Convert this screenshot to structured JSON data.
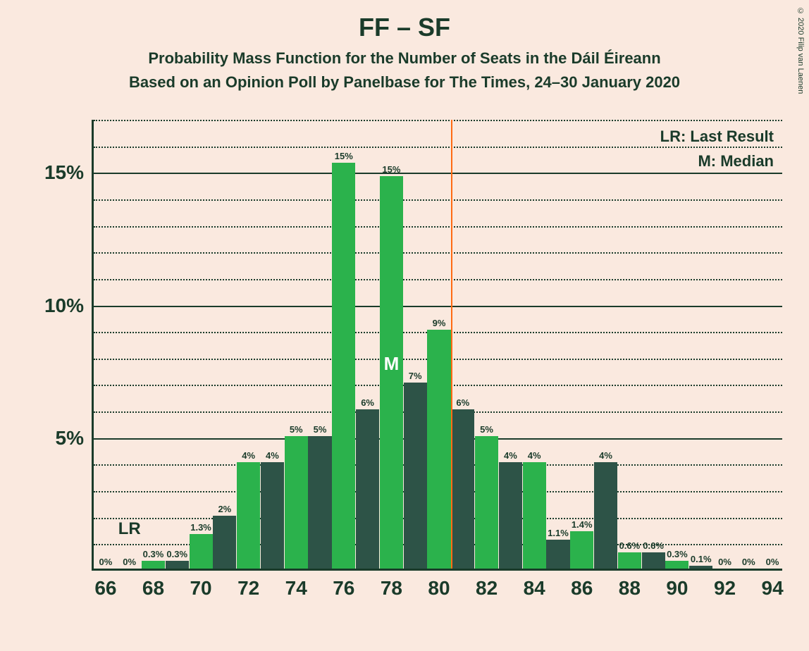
{
  "copyright": "© 2020 Filip van Laenen",
  "title": "FF – SF",
  "subtitle1": "Probability Mass Function for the Number of Seats in the Dáil Éireann",
  "subtitle2": "Based on an Opinion Poll by Panelbase for The Times, 24–30 January 2020",
  "legend": {
    "lr": "LR: Last Result",
    "m": "M: Median"
  },
  "lr_text": "LR",
  "m_text": "M",
  "chart": {
    "background_color": "#fae9df",
    "axis_color": "#1a3b2a",
    "text_color": "#1a3b2a",
    "majority_line_color": "#ff6a13",
    "bar_color_light": "#2bb24c",
    "bar_color_dark": "#2d5347",
    "x_start": 66,
    "x_end": 94,
    "x_tick_step": 2,
    "y_max": 17,
    "y_ticks": [
      5,
      10,
      15
    ],
    "minor_grid_step": 1,
    "majority_x": 80.5,
    "lr_x": 67,
    "m_x": 78,
    "m_y": 7.3,
    "bars": [
      {
        "x": 66,
        "v": 0,
        "lbl": "0%",
        "c": "light"
      },
      {
        "x": 67,
        "v": 0,
        "lbl": "0%",
        "c": "dark"
      },
      {
        "x": 68,
        "v": 0.3,
        "lbl": "0.3%",
        "c": "light"
      },
      {
        "x": 69,
        "v": 0.3,
        "lbl": "0.3%",
        "c": "dark"
      },
      {
        "x": 70,
        "v": 1.3,
        "lbl": "1.3%",
        "c": "light"
      },
      {
        "x": 71,
        "v": 2,
        "lbl": "2%",
        "c": "dark"
      },
      {
        "x": 72,
        "v": 4,
        "lbl": "4%",
        "c": "light"
      },
      {
        "x": 73,
        "v": 4,
        "lbl": "4%",
        "c": "dark"
      },
      {
        "x": 74,
        "v": 5,
        "lbl": "5%",
        "c": "light"
      },
      {
        "x": 75,
        "v": 5,
        "lbl": "5%",
        "c": "dark"
      },
      {
        "x": 76,
        "v": 15.3,
        "lbl": "15%",
        "c": "light"
      },
      {
        "x": 77,
        "v": 6,
        "lbl": "6%",
        "c": "dark"
      },
      {
        "x": 78,
        "v": 14.8,
        "lbl": "15%",
        "c": "light"
      },
      {
        "x": 79,
        "v": 7,
        "lbl": "7%",
        "c": "dark"
      },
      {
        "x": 80,
        "v": 9,
        "lbl": "9%",
        "c": "light"
      },
      {
        "x": 81,
        "v": 6,
        "lbl": "6%",
        "c": "dark"
      },
      {
        "x": 82,
        "v": 5,
        "lbl": "5%",
        "c": "light"
      },
      {
        "x": 83,
        "v": 4,
        "lbl": "4%",
        "c": "dark"
      },
      {
        "x": 84,
        "v": 4,
        "lbl": "4%",
        "c": "light"
      },
      {
        "x": 85,
        "v": 1.1,
        "lbl": "1.1%",
        "c": "dark"
      },
      {
        "x": 86,
        "v": 1.4,
        "lbl": "1.4%",
        "c": "light"
      },
      {
        "x": 87,
        "v": 4,
        "lbl": "4%",
        "c": "dark"
      },
      {
        "x": 88,
        "v": 0.6,
        "lbl": "0.6%",
        "c": "light"
      },
      {
        "x": 89,
        "v": 0.6,
        "lbl": "0.6%",
        "c": "dark"
      },
      {
        "x": 90,
        "v": 0.3,
        "lbl": "0.3%",
        "c": "light"
      },
      {
        "x": 91,
        "v": 0.1,
        "lbl": "0.1%",
        "c": "dark"
      },
      {
        "x": 92,
        "v": 0,
        "lbl": "0%",
        "c": "light"
      },
      {
        "x": 93,
        "v": 0,
        "lbl": "0%",
        "c": "dark"
      },
      {
        "x": 94,
        "v": 0,
        "lbl": "0%",
        "c": "light"
      }
    ]
  }
}
